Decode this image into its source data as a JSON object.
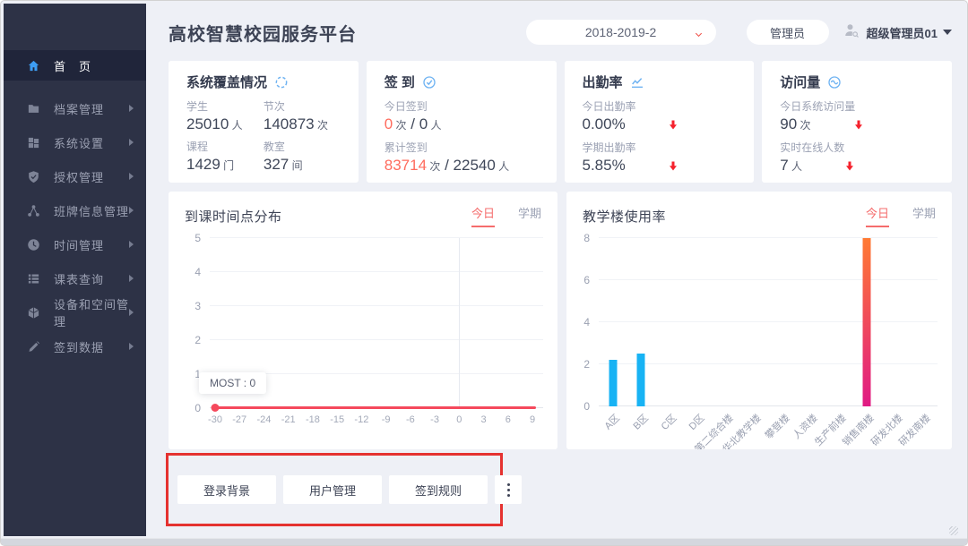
{
  "header": {
    "title": "高校智慧校园服务平台",
    "semester": "2018-2019-2",
    "role_button": "管理员",
    "username": "超级管理员01"
  },
  "sidebar": {
    "items": [
      {
        "label": "首　页",
        "icon": "home",
        "active": true,
        "arrow": false
      },
      {
        "label": "档案管理",
        "icon": "folder",
        "active": false,
        "arrow": true
      },
      {
        "label": "系统设置",
        "icon": "grid",
        "active": false,
        "arrow": true
      },
      {
        "label": "授权管理",
        "icon": "shield",
        "active": false,
        "arrow": true
      },
      {
        "label": "班牌信息管理",
        "icon": "share",
        "active": false,
        "arrow": true
      },
      {
        "label": "时间管理",
        "icon": "clock",
        "active": false,
        "arrow": true
      },
      {
        "label": "课表查询",
        "icon": "list",
        "active": false,
        "arrow": true
      },
      {
        "label": "设备和空间管理",
        "icon": "cube",
        "active": false,
        "arrow": true
      },
      {
        "label": "签到数据",
        "icon": "pen",
        "active": false,
        "arrow": true
      }
    ]
  },
  "colors": {
    "accent_red": "#ff6c5e",
    "arrow_red": "#f5222d",
    "tab_red": "#f56c6c",
    "bar_blue": "#18b3f4",
    "line_red": "#f5495c",
    "icon_blue": "#6fb3f2"
  },
  "stat_cards": [
    {
      "title": "系统覆盖情况",
      "icon": "refresh-circle",
      "layout": "grid",
      "entries": [
        {
          "label": "学生",
          "parts": [
            {
              "t": "25010",
              "s": "num"
            },
            {
              "t": " 人",
              "s": "unit"
            }
          ]
        },
        {
          "label": "节次",
          "parts": [
            {
              "t": "140873",
              "s": "num"
            },
            {
              "t": " 次",
              "s": "unit"
            }
          ]
        },
        {
          "label": "课程",
          "parts": [
            {
              "t": "1429",
              "s": "num"
            },
            {
              "t": " 门",
              "s": "unit"
            }
          ]
        },
        {
          "label": "教室",
          "parts": [
            {
              "t": "327",
              "s": "num"
            },
            {
              "t": " 间",
              "s": "unit"
            }
          ]
        }
      ]
    },
    {
      "title": "签 到",
      "icon": "check-circle",
      "layout": "stack",
      "entries": [
        {
          "label": "今日签到",
          "parts": [
            {
              "t": "0",
              "s": "accent"
            },
            {
              "t": " 次",
              "s": "unit"
            },
            {
              "t": " / ",
              "s": "num"
            },
            {
              "t": "0",
              "s": "num"
            },
            {
              "t": " 人",
              "s": "unit"
            }
          ]
        },
        {
          "label": "累计签到",
          "parts": [
            {
              "t": "83714",
              "s": "accent"
            },
            {
              "t": " 次",
              "s": "unit"
            },
            {
              "t": " / ",
              "s": "num"
            },
            {
              "t": "22540",
              "s": "num"
            },
            {
              "t": " 人",
              "s": "unit"
            }
          ]
        }
      ]
    },
    {
      "title": "出勤率",
      "icon": "line-chart",
      "layout": "stack",
      "entries": [
        {
          "label": "今日出勤率",
          "parts": [
            {
              "t": "0.00%",
              "s": "num"
            }
          ],
          "arrow": "down"
        },
        {
          "label": "学期出勤率",
          "parts": [
            {
              "t": "5.85%",
              "s": "num"
            }
          ],
          "arrow": "down"
        }
      ]
    },
    {
      "title": "访问量",
      "icon": "wave-circle",
      "layout": "stack",
      "entries": [
        {
          "label": "今日系统访问量",
          "parts": [
            {
              "t": "90",
              "s": "num"
            },
            {
              "t": " 次",
              "s": "unit"
            }
          ],
          "arrow": "down"
        },
        {
          "label": "实时在线人数",
          "parts": [
            {
              "t": "7",
              "s": "num"
            },
            {
              "t": " 人",
              "s": "unit"
            }
          ],
          "arrow": "down"
        }
      ]
    }
  ],
  "chart_data": [
    {
      "type": "line",
      "title": "到课时间点分布",
      "tabs": [
        "今日",
        "学期"
      ],
      "active_tab": "今日",
      "x_ticks": [
        "-30",
        "-27",
        "-24",
        "-21",
        "-18",
        "-15",
        "-12",
        "-9",
        "-6",
        "-3",
        "0",
        "3",
        "6",
        "9"
      ],
      "values": [
        0,
        0,
        0,
        0,
        0,
        0,
        0,
        0,
        0,
        0,
        0,
        0,
        0,
        0
      ],
      "y_ticks": [
        0,
        1,
        2,
        3,
        4,
        5
      ],
      "ylim": [
        0,
        5
      ],
      "vline_at": "0",
      "annotation": "MOST : 0",
      "line_color": "#f5495c",
      "grid": true,
      "legend": "none"
    },
    {
      "type": "bar",
      "title": "教学楼使用率",
      "tabs": [
        "今日",
        "学期"
      ],
      "active_tab": "今日",
      "categories": [
        "A区",
        "B区",
        "C区",
        "D区",
        "第二综合楼",
        "华北教学楼",
        "攀登楼",
        "人资楼",
        "生产前楼",
        "销售南楼",
        "研发北楼",
        "研发南楼"
      ],
      "values": [
        2.2,
        2.5,
        0,
        0,
        0,
        0,
        0,
        0,
        0,
        8,
        0,
        0
      ],
      "y_ticks": [
        0,
        2,
        4,
        6,
        8
      ],
      "ylim": [
        0,
        8
      ],
      "bar_color": "#18b3f4",
      "highlight": {
        "index": 9,
        "color_top": "#ff7a33",
        "color_bottom": "#e01a84"
      },
      "grid": true,
      "legend": "none"
    }
  ],
  "footer": {
    "buttons": [
      "登录背景",
      "用户管理",
      "签到规则"
    ],
    "more": "more-options"
  }
}
